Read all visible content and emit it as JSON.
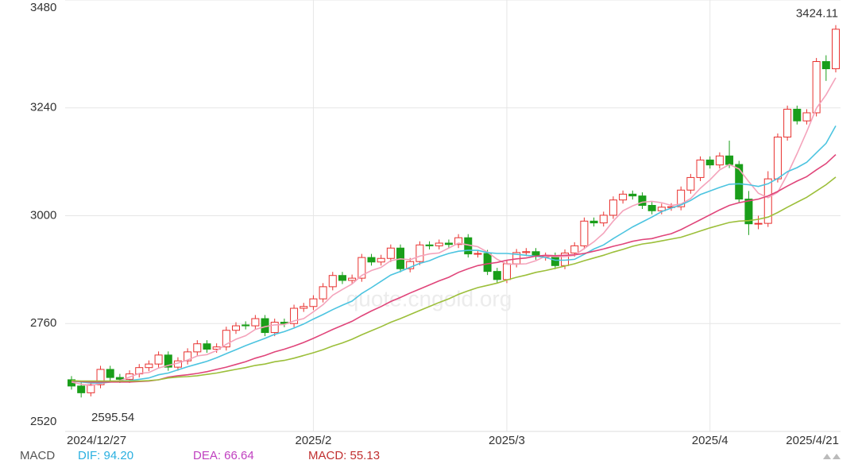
{
  "chart_data": {
    "type": "candlestick",
    "categories": [
      "2024/12/27",
      null,
      null,
      null,
      null,
      null,
      null,
      null,
      null,
      null,
      null,
      null,
      null,
      null,
      null,
      null,
      null,
      null,
      null,
      null,
      null,
      null,
      null,
      null,
      null,
      "2025/2",
      null,
      null,
      null,
      null,
      null,
      null,
      null,
      null,
      null,
      null,
      null,
      null,
      null,
      null,
      null,
      null,
      null,
      null,
      null,
      "2025/3",
      null,
      null,
      null,
      null,
      null,
      null,
      null,
      null,
      null,
      null,
      null,
      null,
      null,
      null,
      null,
      null,
      null,
      null,
      null,
      null,
      "2025/4",
      null,
      null,
      null,
      null,
      null,
      null,
      null,
      null,
      null,
      null,
      null,
      null,
      "2025/4/21"
    ],
    "open": [
      2635,
      2621,
      2606,
      2624,
      2658,
      2640,
      2636,
      2648,
      2662,
      2670,
      2690,
      2663,
      2677,
      2697,
      2715,
      2703,
      2708,
      2745,
      2757,
      2755,
      2771,
      2740,
      2763,
      2760,
      2794,
      2798,
      2815,
      2842,
      2867,
      2856,
      2861,
      2907,
      2897,
      2905,
      2928,
      2882,
      2898,
      2935,
      2933,
      2939,
      2936,
      2951,
      2915,
      2916,
      2876,
      2858,
      2893,
      2918,
      2920,
      2908,
      2910,
      2889,
      2917,
      2933,
      2988,
      2984,
      3001,
      3035,
      3048,
      3044,
      3023,
      3011,
      3019,
      3020,
      3057,
      3085,
      3124,
      3113,
      3133,
      3114,
      3037,
      2982,
      2983,
      3082,
      3175,
      3237,
      3211,
      3229,
      3343,
      3327
    ],
    "high": [
      2643,
      2629,
      2632,
      2666,
      2666,
      2648,
      2656,
      2670,
      2678,
      2698,
      2698,
      2685,
      2705,
      2723,
      2723,
      2716,
      2753,
      2763,
      2765,
      2779,
      2779,
      2771,
      2771,
      2802,
      2806,
      2823,
      2850,
      2875,
      2875,
      2869,
      2915,
      2915,
      2913,
      2936,
      2936,
      2906,
      2943,
      2943,
      2947,
      2947,
      2959,
      2959,
      2924,
      2924,
      2884,
      2901,
      2926,
      2928,
      2928,
      2918,
      2918,
      2925,
      2941,
      2996,
      2996,
      3009,
      3043,
      3056,
      3056,
      3052,
      3031,
      3027,
      3028,
      3065,
      3093,
      3132,
      3132,
      3141,
      3167,
      3122,
      3055,
      3000,
      3099,
      3183,
      3245,
      3245,
      3237,
      3351,
      3357,
      3424.11
    ],
    "low": [
      2613,
      2595.54,
      2598,
      2616,
      2632,
      2628,
      2628,
      2640,
      2654,
      2662,
      2655,
      2655,
      2669,
      2689,
      2695,
      2695,
      2700,
      2737,
      2747,
      2747,
      2732,
      2732,
      2752,
      2752,
      2786,
      2790,
      2807,
      2834,
      2848,
      2848,
      2853,
      2889,
      2889,
      2897,
      2874,
      2874,
      2890,
      2925,
      2925,
      2928,
      2928,
      2907,
      2907,
      2868,
      2850,
      2850,
      2885,
      2910,
      2902,
      2900,
      2881,
      2881,
      2909,
      2925,
      2976,
      2976,
      2993,
      3027,
      3036,
      3015,
      3003,
      3003,
      3011,
      3012,
      3049,
      3077,
      3105,
      3105,
      3106,
      3029,
      2957,
      2970,
      2975,
      3074,
      3167,
      3203,
      3203,
      3221,
      3300,
      3319
    ],
    "close": [
      2621,
      2606,
      2624,
      2658,
      2640,
      2636,
      2648,
      2662,
      2670,
      2690,
      2663,
      2677,
      2697,
      2715,
      2703,
      2708,
      2745,
      2755,
      2755,
      2771,
      2740,
      2763,
      2760,
      2794,
      2798,
      2815,
      2842,
      2867,
      2856,
      2861,
      2907,
      2897,
      2905,
      2928,
      2882,
      2898,
      2935,
      2933,
      2939,
      2936,
      2951,
      2915,
      2916,
      2876,
      2858,
      2893,
      2918,
      2920,
      2910,
      2910,
      2889,
      2917,
      2933,
      2988,
      2984,
      3001,
      3035,
      3048,
      3044,
      3023,
      3011,
      3019,
      3020,
      3057,
      3085,
      3124,
      3113,
      3133,
      3114,
      3037,
      2982,
      2983,
      3082,
      3175,
      3237,
      3211,
      3229,
      3343,
      3327,
      3415
    ],
    "up_color": "#e8312f",
    "down_color": "#1a9e1a",
    "series": [
      {
        "color": "#f4a3bb",
        "values": [
          2630,
          2625,
          2622,
          2627,
          2630,
          2633,
          2641,
          2649,
          2651,
          2661,
          2667,
          2672,
          2679,
          2688,
          2691,
          2700,
          2714,
          2725,
          2733,
          2747,
          2753,
          2757,
          2758,
          2766,
          2771,
          2786,
          2802,
          2823,
          2836,
          2848,
          2867,
          2878,
          2885,
          2900,
          2904,
          2902,
          2910,
          2915,
          2917,
          2928,
          2939,
          2935,
          2931,
          2919,
          2903,
          2892,
          2892,
          2893,
          2900,
          2910,
          2909,
          2909,
          2912,
          2927,
          2942,
          2961,
          2988,
          3011,
          3022,
          3030,
          3032,
          3029,
          3023,
          3026,
          3038,
          3061,
          3080,
          3102,
          3114,
          3104,
          3076,
          3050,
          3040,
          3052,
          3092,
          3138,
          3187,
          3239,
          3269,
          3307
        ]
      },
      {
        "color": "#4cc4e0",
        "values": [
          2632,
          2630,
          2628,
          2628,
          2630,
          2632,
          2633,
          2636,
          2639,
          2646,
          2650,
          2657,
          2664,
          2670,
          2676,
          2684,
          2693,
          2702,
          2711,
          2719,
          2727,
          2736,
          2742,
          2750,
          2759,
          2770,
          2780,
          2791,
          2801,
          2810,
          2827,
          2840,
          2854,
          2868,
          2876,
          2885,
          2894,
          2900,
          2909,
          2916,
          2921,
          2923,
          2923,
          2918,
          2916,
          2916,
          2914,
          2912,
          2910,
          2907,
          2901,
          2901,
          2903,
          2914,
          2926,
          2935,
          2949,
          2962,
          2975,
          2986,
          2997,
          3009,
          3017,
          3024,
          3034,
          3047,
          3055,
          3063,
          3070,
          3071,
          3069,
          3065,
          3071,
          3083,
          3098,
          3107,
          3119,
          3140,
          3161,
          3200
        ]
      },
      {
        "color": "#e0457a",
        "values": [
          2632,
          2631,
          2630,
          2630,
          2630,
          2630,
          2630,
          2631,
          2632,
          2635,
          2641,
          2644,
          2646,
          2649,
          2653,
          2658,
          2663,
          2669,
          2675,
          2683,
          2689,
          2697,
          2703,
          2710,
          2718,
          2727,
          2737,
          2747,
          2756,
          2765,
          2777,
          2788,
          2798,
          2809,
          2818,
          2828,
          2837,
          2846,
          2855,
          2863,
          2874,
          2882,
          2889,
          2893,
          2896,
          2901,
          2904,
          2906,
          2910,
          2912,
          2911,
          2912,
          2913,
          2916,
          2921,
          2926,
          2932,
          2937,
          2943,
          2947,
          2949,
          2955,
          2960,
          2969,
          2980,
          2991,
          3002,
          3013,
          3023,
          3029,
          3033,
          3037,
          3044,
          3054,
          3066,
          3077,
          3087,
          3102,
          3116,
          3136
        ]
      },
      {
        "color": "#9cbf3a",
        "values": [
          2633,
          2632,
          2632,
          2632,
          2632,
          2632,
          2632,
          2632,
          2633,
          2635,
          2639,
          2641,
          2642,
          2644,
          2647,
          2650,
          2654,
          2658,
          2662,
          2667,
          2670,
          2675,
          2678,
          2683,
          2689,
          2695,
          2702,
          2710,
          2717,
          2725,
          2735,
          2744,
          2753,
          2763,
          2771,
          2780,
          2789,
          2798,
          2807,
          2815,
          2825,
          2833,
          2840,
          2845,
          2850,
          2857,
          2863,
          2868,
          2874,
          2878,
          2883,
          2888,
          2893,
          2900,
          2906,
          2912,
          2919,
          2925,
          2932,
          2937,
          2940,
          2944,
          2948,
          2952,
          2959,
          2966,
          2973,
          2979,
          2985,
          2988,
          2989,
          2992,
          2997,
          3007,
          3019,
          3030,
          3041,
          3055,
          3069,
          3086
        ]
      }
    ],
    "ylim": [
      2520,
      3480
    ],
    "yticks": [
      2520,
      2760,
      3000,
      3240,
      3480
    ],
    "grid": true,
    "watermark": "quote.cngold.org",
    "footer": [
      {
        "text": "MACD",
        "color": "#555555"
      },
      {
        "text": "DIF: 94.20",
        "color": "#2ab0e0"
      },
      {
        "text": "DEA: 66.64",
        "color": "#c040c0"
      },
      {
        "text": "MACD: 55.13",
        "color": "#c03030"
      }
    ]
  }
}
